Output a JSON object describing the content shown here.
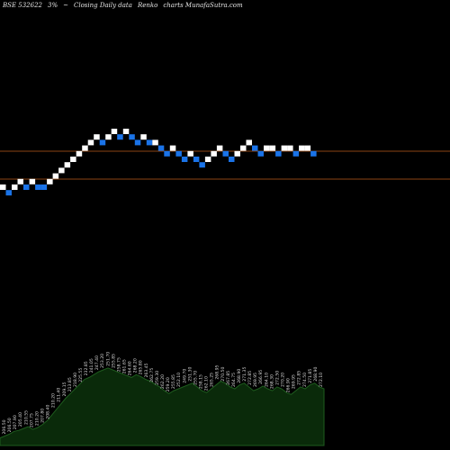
{
  "header": {
    "symbol": "BSE 532622",
    "box_size": "3%",
    "arrow_glyph": "~",
    "series_type": "Closing Daily data",
    "chart_kind": "Renko",
    "watermark": "charts MunafaSutra.com"
  },
  "colors": {
    "background": "#000000",
    "up_brick": "#ffffff",
    "down_brick": "#1a73e8",
    "guide_line": "#8b4513",
    "volume_fill": "#0a2a0a",
    "volume_stroke": "#1e5c1e",
    "volume_label": "#d9d9d9"
  },
  "chart_data": {
    "type": "renko",
    "title": "BSE 532622 3% Closing Daily data Renko charts MunafaSutra.com",
    "bricks": [
      {
        "dir": "up",
        "level": 0
      },
      {
        "dir": "down",
        "level": -1
      },
      {
        "dir": "up",
        "level": 0
      },
      {
        "dir": "up",
        "level": 1
      },
      {
        "dir": "down",
        "level": 0
      },
      {
        "dir": "up",
        "level": 1
      },
      {
        "dir": "down",
        "level": 0
      },
      {
        "dir": "down",
        "level": 0
      },
      {
        "dir": "up",
        "level": 1
      },
      {
        "dir": "up",
        "level": 2
      },
      {
        "dir": "up",
        "level": 3
      },
      {
        "dir": "up",
        "level": 4
      },
      {
        "dir": "up",
        "level": 5
      },
      {
        "dir": "up",
        "level": 6
      },
      {
        "dir": "up",
        "level": 7
      },
      {
        "dir": "up",
        "level": 8
      },
      {
        "dir": "up",
        "level": 9
      },
      {
        "dir": "down",
        "level": 8
      },
      {
        "dir": "up",
        "level": 9
      },
      {
        "dir": "up",
        "level": 10
      },
      {
        "dir": "down",
        "level": 9
      },
      {
        "dir": "up",
        "level": 10
      },
      {
        "dir": "down",
        "level": 9
      },
      {
        "dir": "down",
        "level": 8
      },
      {
        "dir": "up",
        "level": 9
      },
      {
        "dir": "down",
        "level": 8
      },
      {
        "dir": "up",
        "level": 8
      },
      {
        "dir": "down",
        "level": 7
      },
      {
        "dir": "down",
        "level": 6
      },
      {
        "dir": "up",
        "level": 7
      },
      {
        "dir": "down",
        "level": 6
      },
      {
        "dir": "down",
        "level": 5
      },
      {
        "dir": "up",
        "level": 6
      },
      {
        "dir": "down",
        "level": 5
      },
      {
        "dir": "down",
        "level": 4
      },
      {
        "dir": "up",
        "level": 5
      },
      {
        "dir": "up",
        "level": 6
      },
      {
        "dir": "up",
        "level": 7
      },
      {
        "dir": "down",
        "level": 6
      },
      {
        "dir": "down",
        "level": 5
      },
      {
        "dir": "up",
        "level": 6
      },
      {
        "dir": "up",
        "level": 7
      },
      {
        "dir": "up",
        "level": 8
      },
      {
        "dir": "down",
        "level": 7
      },
      {
        "dir": "down",
        "level": 6
      },
      {
        "dir": "up",
        "level": 7
      },
      {
        "dir": "up",
        "level": 7
      },
      {
        "dir": "down",
        "level": 6
      },
      {
        "dir": "up",
        "level": 7
      },
      {
        "dir": "up",
        "level": 7
      },
      {
        "dir": "down",
        "level": 6
      },
      {
        "dir": "up",
        "level": 7
      },
      {
        "dir": "up",
        "level": 7
      },
      {
        "dir": "down",
        "level": 6
      }
    ],
    "reference_lines": [
      "upper",
      "lower"
    ],
    "volume_values": [
      8,
      10,
      12,
      15,
      16,
      18,
      20,
      17,
      19,
      22,
      26,
      32,
      38,
      44,
      50,
      55,
      60,
      65,
      70,
      72,
      75,
      78,
      80,
      82,
      80,
      78,
      76,
      74,
      72,
      75,
      73,
      70,
      68,
      65,
      62,
      58,
      55,
      58,
      60,
      62,
      64,
      66,
      62,
      58,
      56,
      60,
      64,
      68,
      66,
      62,
      60,
      64,
      66,
      62,
      58,
      60,
      63,
      60,
      58,
      62,
      60,
      56,
      54,
      58,
      62,
      60,
      64,
      66,
      62,
      60
    ],
    "volume_labels": [
      "206.50",
      "206.50",
      "207.90",
      "205.40",
      "210.55",
      "207.75",
      "210.20",
      "207.80",
      "208.40",
      "210.20",
      "211.40",
      "209.15",
      "213.85",
      "218.90",
      "225.55",
      "232.85",
      "241.05",
      "247.40",
      "253.20",
      "251.70",
      "255.85",
      "258.75",
      "261.65",
      "264.60",
      "268.20",
      "265.80",
      "263.45",
      "262.75",
      "259.30",
      "262.20",
      "259.20",
      "255.85",
      "252.10",
      "249.70",
      "251.30",
      "255.70",
      "258.15",
      "262.10",
      "265.25",
      "268.95",
      "270.50",
      "267.85",
      "264.75",
      "268.90",
      "271.35",
      "272.85",
      "269.95",
      "266.95",
      "264.10",
      "268.30",
      "272.50",
      "270.20",
      "266.90",
      "269.95",
      "272.85",
      "274.50",
      "271.85",
      "268.90",
      "272.10"
    ]
  }
}
